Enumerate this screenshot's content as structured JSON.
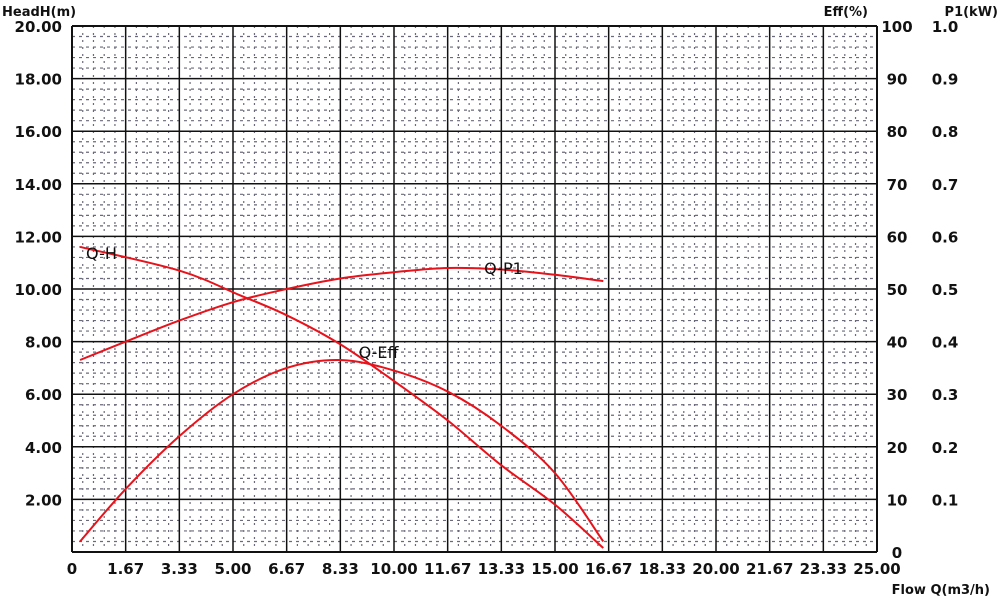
{
  "chart_data": {
    "type": "line",
    "xlabel": "Flow Q(m3/h)",
    "ylabel": "HeadH(m)",
    "y2label": "Eff(%)",
    "y3label": "P1(kW)",
    "xlim": [
      0,
      25
    ],
    "ylim": [
      0,
      20
    ],
    "y2lim": [
      0,
      100
    ],
    "y3lim": [
      0,
      1.0
    ],
    "x_ticks": [
      "0",
      "1.67",
      "3.33",
      "5.00",
      "6.67",
      "8.33",
      "10.00",
      "11.67",
      "13.33",
      "15.00",
      "16.67",
      "18.33",
      "20.00",
      "21.67",
      "23.33",
      "25.00"
    ],
    "y_ticks": [
      "2.00",
      "4.00",
      "6.00",
      "8.00",
      "10.00",
      "12.00",
      "14.00",
      "16.00",
      "18.00",
      "20.00"
    ],
    "y2_ticks": [
      "0",
      "10",
      "20",
      "30",
      "40",
      "50",
      "60",
      "70",
      "80",
      "90",
      "100"
    ],
    "y3_ticks": [
      "0.1",
      "0.2",
      "0.3",
      "0.4",
      "0.5",
      "0.6",
      "0.7",
      "0.8",
      "0.9",
      "1.0"
    ],
    "grid": true,
    "colors": {
      "curve": "#e8121b",
      "grid": "#111111",
      "minor_grid": "#6a6a7a"
    },
    "series": [
      {
        "name": "Q-H",
        "axis": "y",
        "x": [
          0.25,
          3.33,
          5.2,
          6.67,
          8.33,
          10,
          11.67,
          13.33,
          15,
          16.5
        ],
        "values": [
          11.6,
          10.7,
          9.77,
          9.0,
          7.9,
          6.5,
          5.0,
          3.3,
          1.8,
          0.15
        ]
      },
      {
        "name": "Q-P1",
        "axis": "y3",
        "x": [
          0.25,
          1.67,
          3.33,
          5,
          6.67,
          8.33,
          10,
          11.67,
          13.33,
          15,
          16.5
        ],
        "values": [
          0.365,
          0.4,
          0.44,
          0.475,
          0.5,
          0.52,
          0.532,
          0.54,
          0.537,
          0.527,
          0.515
        ]
      },
      {
        "name": "Q-Eff",
        "axis": "y2",
        "x": [
          0.25,
          1.67,
          3.33,
          5,
          6.67,
          8.33,
          10,
          11.67,
          13.33,
          15,
          16.5
        ],
        "values": [
          2,
          12,
          22,
          30,
          35,
          36.5,
          34.5,
          30.5,
          24,
          15,
          2
        ]
      }
    ]
  }
}
